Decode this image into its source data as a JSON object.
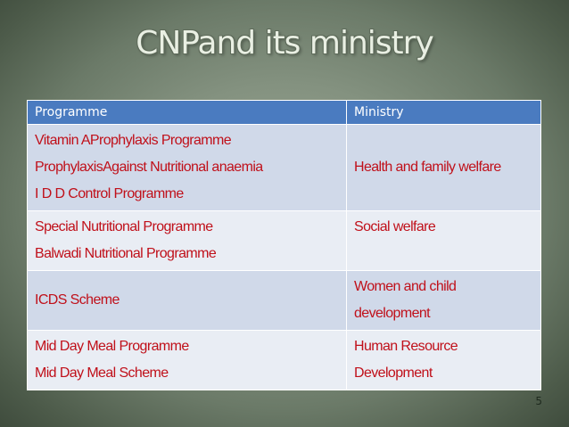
{
  "slide": {
    "title": "CNPand its ministry",
    "page_number": "5"
  },
  "table": {
    "headers": {
      "programme": "Programme",
      "ministry": "Ministry"
    },
    "rows": [
      {
        "programmes": [
          "Vitamin AProphylaxis Programme",
          "ProphylaxisAgainst Nutritional anaemia",
          "I D D Control Programme"
        ],
        "ministry": [
          "Health and family welfare"
        ]
      },
      {
        "programmes": [
          "Special Nutritional Programme",
          "Balwadi Nutritional Programme"
        ],
        "ministry": [
          "Social welfare"
        ]
      },
      {
        "programmes": [
          "ICDS Scheme"
        ],
        "ministry": [
          "Women and child",
          "development"
        ]
      },
      {
        "programmes": [
          "Mid Day Meal Programme",
          "Mid Day Meal Scheme"
        ],
        "ministry": [
          "Human Resource",
          "Development"
        ]
      }
    ]
  },
  "colors": {
    "header_fill": "#4a7bc0",
    "row_dark": "#d0d9e9",
    "row_light": "#e9edf4",
    "text_red": "#c0101a"
  }
}
